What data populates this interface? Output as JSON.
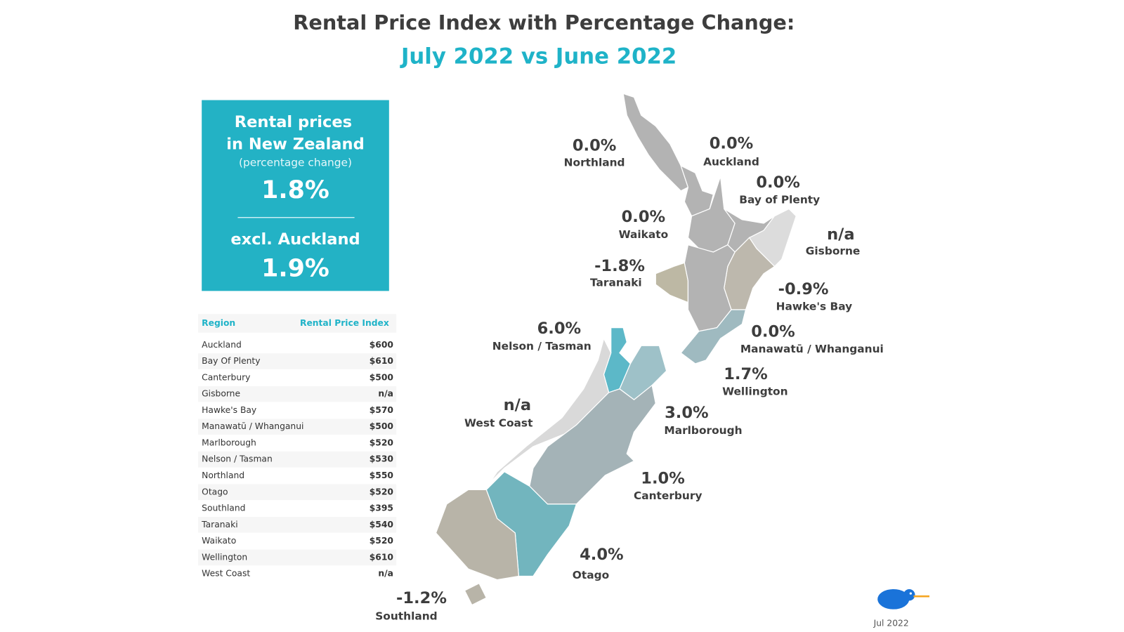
{
  "title": "Rental Price Index with Percentage Change:",
  "subtitle": "July 2022 vs June 2022",
  "summary": {
    "heading_line1": "Rental prices",
    "heading_line2": "in New Zealand",
    "note": "(percentage change)",
    "value": "1.8%",
    "excl_label": "excl. Auckland",
    "excl_value": "1.9%"
  },
  "table": {
    "header": [
      "Region",
      "Rental Price Index"
    ],
    "rows": [
      [
        "Auckland",
        "$600"
      ],
      [
        "Bay Of Plenty",
        "$610"
      ],
      [
        "Canterbury",
        "$500"
      ],
      [
        "Gisborne",
        "n/a"
      ],
      [
        "Hawke's Bay",
        "$570"
      ],
      [
        "Manawatū / Whanganui",
        "$500"
      ],
      [
        "Marlborough",
        "$520"
      ],
      [
        "Nelson / Tasman",
        "$530"
      ],
      [
        "Northland",
        "$550"
      ],
      [
        "Otago",
        "$520"
      ],
      [
        "Southland",
        "$395"
      ],
      [
        "Taranaki",
        "$540"
      ],
      [
        "Waikato",
        "$520"
      ],
      [
        "Wellington",
        "$610"
      ],
      [
        "West Coast",
        "n/a"
      ]
    ]
  },
  "regions": [
    {
      "name": "Northland",
      "change": "0.0%"
    },
    {
      "name": "Auckland",
      "change": "0.0%"
    },
    {
      "name": "Bay of Plenty",
      "change": "0.0%"
    },
    {
      "name": "Waikato",
      "change": "0.0%"
    },
    {
      "name": "Gisborne",
      "change": "n/a"
    },
    {
      "name": "Taranaki",
      "change": "-1.8%"
    },
    {
      "name": "Hawke's Bay",
      "change": "-0.9%"
    },
    {
      "name": "Manawatū / Whanganui",
      "change": "0.0%"
    },
    {
      "name": "Nelson / Tasman",
      "change": "6.0%"
    },
    {
      "name": "Wellington",
      "change": "1.7%"
    },
    {
      "name": "West Coast",
      "change": "n/a"
    },
    {
      "name": "Marlborough",
      "change": "3.0%"
    },
    {
      "name": "Canterbury",
      "change": "1.0%"
    },
    {
      "name": "Otago",
      "change": "4.0%"
    },
    {
      "name": "Southland",
      "change": "-1.2%"
    }
  ],
  "date": "Jul 2022"
}
